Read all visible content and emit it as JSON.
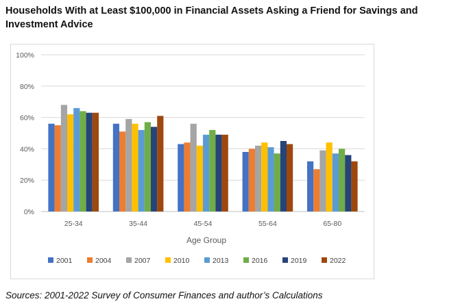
{
  "title": "Households With at Least $100,000 in Financial Assets Asking a Friend for Savings and Investment Advice",
  "source": "Sources: 2001-2022 Survey of Consumer Finances and author’s Calculations",
  "chart_data": {
    "type": "bar",
    "title": "Households With at Least $100,000 in Financial Assets Asking a Friend for Savings and Investment Advice",
    "xlabel": "Age Group",
    "ylabel": "",
    "categories": [
      "25-34",
      "35-44",
      "45-54",
      "55-64",
      "65-80"
    ],
    "ylim": [
      0,
      100
    ],
    "yticks": [
      "0%",
      "20%",
      "40%",
      "60%",
      "80%",
      "100%"
    ],
    "grid": true,
    "legend_position": "bottom",
    "series": [
      {
        "name": "2001",
        "color": "#4472C4",
        "values": [
          56,
          56,
          43,
          38,
          32
        ]
      },
      {
        "name": "2004",
        "color": "#ED7D31",
        "values": [
          55,
          51,
          44,
          40,
          27
        ]
      },
      {
        "name": "2007",
        "color": "#A5A5A5",
        "values": [
          68,
          59,
          56,
          42,
          39
        ]
      },
      {
        "name": "2010",
        "color": "#FFC000",
        "values": [
          62,
          56,
          42,
          44,
          44
        ]
      },
      {
        "name": "2013",
        "color": "#5B9BD5",
        "values": [
          66,
          52,
          49,
          41,
          37
        ]
      },
      {
        "name": "2016",
        "color": "#70AD47",
        "values": [
          64,
          57,
          52,
          37,
          40
        ]
      },
      {
        "name": "2019",
        "color": "#264478",
        "values": [
          63,
          54,
          49,
          45,
          36
        ]
      },
      {
        "name": "2022",
        "color": "#9E480E",
        "values": [
          63,
          61,
          49,
          43,
          32
        ]
      }
    ]
  }
}
